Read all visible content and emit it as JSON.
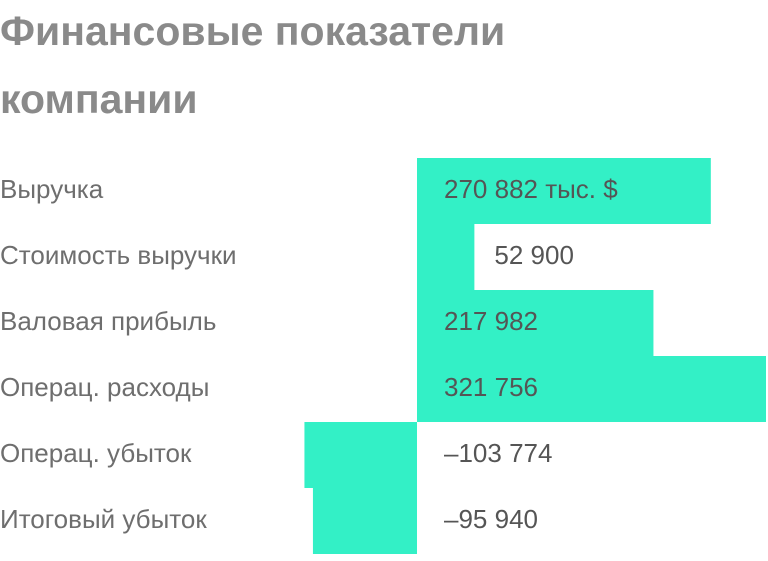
{
  "chart_data": {
    "type": "bar",
    "orientation": "horizontal",
    "title": "Финансовые показатели компании",
    "categories": [
      "Выручка",
      "Стоимость выручки",
      "Валовая прибыль",
      "Операц. расходы",
      "Операц. убыток",
      "Итоговый убыток"
    ],
    "values": [
      270882,
      52900,
      217982,
      321756,
      -103774,
      -95940
    ],
    "value_labels": [
      "270 882 тыс. $",
      "52 900",
      "217 982",
      "321 756",
      "–103 774",
      "–95 940"
    ],
    "color": "#33f0c6"
  }
}
